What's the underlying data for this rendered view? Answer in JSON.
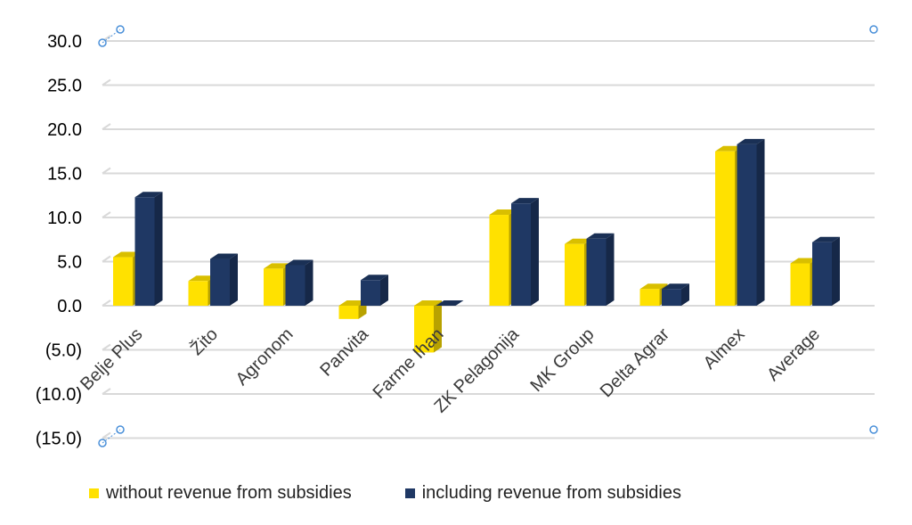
{
  "chart_data": {
    "type": "bar",
    "title": "",
    "categories": [
      "Belje Plus",
      "Žito",
      "Agronom",
      "Panvita",
      "Farme Ihan",
      "ZK Pelagonija",
      "MK Group",
      "Delta Agrar",
      "Almex",
      "Average"
    ],
    "series": [
      {
        "name": "without revenue from subsidies",
        "color": "#FFE100",
        "values": [
          5.5,
          2.8,
          4.2,
          -1.5,
          -5.3,
          10.3,
          7.0,
          1.9,
          17.5,
          4.8
        ]
      },
      {
        "name": "including revenue from subsidies",
        "color": "#1F3864",
        "values": [
          12.3,
          5.3,
          4.6,
          2.9,
          0.0,
          11.6,
          7.6,
          1.9,
          18.3,
          7.2
        ]
      }
    ],
    "ylim": [
      -15,
      30
    ],
    "yticks": [
      30,
      25,
      20,
      15,
      10,
      5,
      0,
      -5,
      -10,
      -15
    ],
    "ytick_labels": [
      "30.0",
      "25.0",
      "20.0",
      "15.0",
      "10.0",
      "5.0",
      "0.0",
      "(5.0)",
      "(10.0)",
      "(15.0)"
    ],
    "grid": true,
    "legend_position": "bottom"
  }
}
